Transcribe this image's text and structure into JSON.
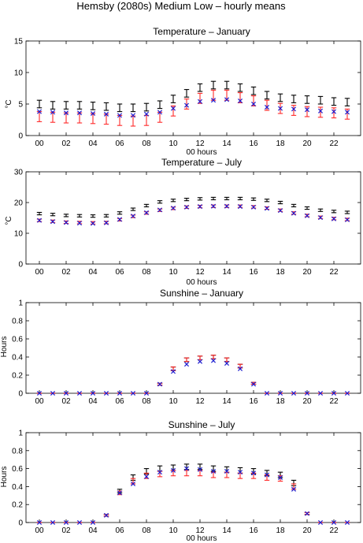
{
  "figure_title": "Hemsby (2080s) Medium Low – hourly means",
  "colors": {
    "black": "#000000",
    "red": "#ff2a2a",
    "blue": "#1f1fd0"
  },
  "chart_data": [
    {
      "type": "scatter",
      "title": "Temperature – January",
      "xlabel": "00 hours",
      "ylabel": "°C",
      "ylim": [
        0,
        15
      ],
      "yticks": [
        "0",
        "5",
        "10",
        "15"
      ],
      "xticks": [
        "00",
        "02",
        "04",
        "06",
        "08",
        "10",
        "12",
        "14",
        "16",
        "18",
        "20",
        "22"
      ],
      "x": [
        0,
        1,
        2,
        3,
        4,
        5,
        6,
        7,
        8,
        9,
        10,
        11,
        12,
        13,
        14,
        15,
        16,
        17,
        18,
        19,
        20,
        21,
        22,
        23
      ],
      "series": [
        {
          "marker": "errorbar",
          "color": "black",
          "values": [
            5.0,
            4.8,
            4.8,
            4.8,
            4.7,
            4.6,
            4.4,
            4.4,
            4.5,
            4.9,
            5.8,
            6.7,
            7.6,
            8.0,
            8.0,
            7.6,
            7.1,
            6.4,
            6.0,
            5.8,
            5.7,
            5.6,
            5.4,
            5.3
          ],
          "err": [
            0.6,
            0.6,
            0.6,
            0.6,
            0.6,
            0.6,
            0.6,
            0.6,
            0.6,
            0.6,
            0.6,
            0.6,
            0.6,
            0.6,
            0.6,
            0.6,
            0.6,
            0.6,
            0.6,
            0.6,
            0.6,
            0.6,
            0.6,
            0.6
          ]
        },
        {
          "marker": "errorbar",
          "color": "red",
          "values": [
            3.0,
            2.9,
            2.8,
            2.8,
            2.7,
            2.6,
            2.4,
            2.3,
            2.4,
            2.9,
            3.9,
            5.0,
            5.9,
            6.4,
            6.4,
            6.0,
            5.5,
            4.8,
            4.3,
            4.0,
            3.8,
            3.7,
            3.6,
            3.4
          ],
          "err": [
            0.8,
            0.8,
            0.8,
            0.8,
            0.8,
            0.8,
            0.8,
            0.8,
            0.8,
            0.8,
            0.8,
            0.8,
            0.8,
            0.8,
            0.8,
            0.8,
            0.8,
            0.8,
            0.8,
            0.8,
            0.8,
            0.8,
            0.8,
            0.8
          ]
        },
        {
          "marker": "x",
          "color": "blue",
          "values": [
            3.8,
            3.7,
            3.6,
            3.6,
            3.5,
            3.4,
            3.2,
            3.2,
            3.4,
            3.7,
            4.3,
            4.8,
            5.4,
            5.6,
            5.7,
            5.5,
            5.0,
            4.5,
            4.3,
            4.2,
            4.1,
            3.9,
            3.8,
            3.7
          ]
        }
      ]
    },
    {
      "type": "scatter",
      "title": "Temperature – July",
      "xlabel": "00 hours",
      "ylabel": "°C",
      "ylim": [
        0,
        30
      ],
      "yticks": [
        "0",
        "10",
        "20",
        "30"
      ],
      "xticks": [
        "00",
        "02",
        "04",
        "06",
        "08",
        "10",
        "12",
        "14",
        "16",
        "18",
        "20",
        "22"
      ],
      "x": [
        0,
        1,
        2,
        3,
        4,
        5,
        6,
        7,
        8,
        9,
        10,
        11,
        12,
        13,
        14,
        15,
        16,
        17,
        18,
        19,
        20,
        21,
        22,
        23
      ],
      "series": [
        {
          "marker": "errorbar",
          "color": "black",
          "values": [
            16.4,
            16.1,
            15.8,
            15.7,
            15.6,
            15.7,
            16.6,
            17.8,
            19.0,
            20.2,
            20.7,
            21.0,
            21.2,
            21.3,
            21.3,
            21.3,
            21.1,
            20.7,
            20.0,
            19.0,
            18.2,
            17.5,
            17.1,
            16.8
          ],
          "err": [
            0.4,
            0.4,
            0.4,
            0.4,
            0.4,
            0.4,
            0.4,
            0.4,
            0.4,
            0.4,
            0.4,
            0.4,
            0.4,
            0.4,
            0.4,
            0.4,
            0.4,
            0.4,
            0.4,
            0.4,
            0.4,
            0.4,
            0.4,
            0.4
          ]
        },
        {
          "marker": "errorbar",
          "color": "red",
          "values": [
            14.2,
            13.9,
            13.6,
            13.5,
            13.4,
            13.5,
            14.4,
            15.5,
            16.6,
            17.5,
            18.1,
            18.5,
            18.7,
            18.8,
            18.8,
            18.8,
            18.6,
            18.2,
            17.5,
            16.6,
            15.8,
            15.2,
            14.8,
            14.5
          ],
          "err": [
            0.4,
            0.4,
            0.4,
            0.4,
            0.4,
            0.4,
            0.4,
            0.4,
            0.4,
            0.4,
            0.4,
            0.4,
            0.4,
            0.4,
            0.4,
            0.4,
            0.4,
            0.4,
            0.4,
            0.4,
            0.4,
            0.4,
            0.4,
            0.4
          ]
        },
        {
          "marker": "x",
          "color": "blue",
          "values": [
            14.2,
            13.8,
            13.5,
            13.3,
            13.2,
            13.4,
            14.5,
            15.6,
            16.7,
            17.6,
            18.2,
            18.5,
            18.7,
            18.8,
            18.8,
            18.7,
            18.5,
            18.1,
            17.4,
            16.5,
            15.7,
            15.1,
            14.7,
            14.4
          ]
        }
      ]
    },
    {
      "type": "scatter",
      "title": "Sunshine – January",
      "xlabel": "00 hours",
      "ylabel": "Hours",
      "ylim": [
        0,
        1
      ],
      "yticks": [
        "0",
        "0.2",
        "0.4",
        "0.6",
        "0.8",
        "1"
      ],
      "xticks": [
        "00",
        "02",
        "04",
        "06",
        "08",
        "10",
        "12",
        "14",
        "16",
        "18",
        "20",
        "22"
      ],
      "x": [
        0,
        1,
        2,
        3,
        4,
        5,
        6,
        7,
        8,
        9,
        10,
        11,
        12,
        13,
        14,
        15,
        16,
        17,
        18,
        19,
        20,
        21,
        22,
        23
      ],
      "series": [
        {
          "marker": "errorbar",
          "color": "black",
          "values": [
            0,
            0,
            0,
            0,
            0,
            0,
            0,
            0,
            0,
            0.1,
            0.27,
            0.37,
            0.39,
            0.4,
            0.37,
            0.3,
            0.11,
            0,
            0,
            0,
            0,
            0,
            0,
            0
          ],
          "err": [
            0,
            0,
            0,
            0,
            0,
            0,
            0,
            0,
            0,
            0.01,
            0.02,
            0.02,
            0.02,
            0.02,
            0.02,
            0.02,
            0.01,
            0,
            0,
            0,
            0,
            0,
            0,
            0
          ]
        },
        {
          "marker": "errorbar",
          "color": "red",
          "values": [
            0,
            0,
            0,
            0,
            0,
            0,
            0,
            0,
            0,
            0.1,
            0.27,
            0.37,
            0.39,
            0.4,
            0.37,
            0.3,
            0.11,
            0,
            0,
            0,
            0,
            0,
            0,
            0
          ],
          "err": [
            0,
            0,
            0,
            0,
            0,
            0,
            0,
            0,
            0,
            0.01,
            0.02,
            0.02,
            0.02,
            0.02,
            0.02,
            0.02,
            0.01,
            0,
            0,
            0,
            0,
            0,
            0,
            0
          ]
        },
        {
          "marker": "x",
          "color": "blue",
          "values": [
            0,
            0,
            0,
            0,
            0,
            0,
            0,
            0,
            0,
            0.1,
            0.24,
            0.32,
            0.35,
            0.36,
            0.33,
            0.27,
            0.1,
            0,
            0,
            0,
            0,
            0,
            0,
            0
          ]
        }
      ]
    },
    {
      "type": "scatter",
      "title": "Sunshine – July",
      "xlabel": "00 hours",
      "ylabel": "Hours",
      "ylim": [
        0,
        1
      ],
      "yticks": [
        "0",
        "0.2",
        "0.4",
        "0.6",
        "0.8",
        "1"
      ],
      "xticks": [
        "00",
        "02",
        "04",
        "06",
        "08",
        "10",
        "12",
        "14",
        "16",
        "18",
        "20",
        "22"
      ],
      "x": [
        0,
        1,
        2,
        3,
        4,
        5,
        6,
        7,
        8,
        9,
        10,
        11,
        12,
        13,
        14,
        15,
        16,
        17,
        18,
        19,
        20,
        21,
        22,
        23
      ],
      "series": [
        {
          "marker": "errorbar",
          "color": "black",
          "values": [
            0,
            0,
            0,
            0,
            0,
            0.08,
            0.35,
            0.5,
            0.57,
            0.6,
            0.61,
            0.62,
            0.62,
            0.6,
            0.59,
            0.58,
            0.57,
            0.55,
            0.53,
            0.44,
            0.1,
            0,
            0,
            0
          ],
          "err": [
            0,
            0,
            0,
            0,
            0,
            0.01,
            0.02,
            0.03,
            0.03,
            0.03,
            0.03,
            0.03,
            0.03,
            0.03,
            0.03,
            0.03,
            0.03,
            0.03,
            0.03,
            0.03,
            0.01,
            0,
            0,
            0
          ]
        },
        {
          "marker": "errorbar",
          "color": "red",
          "values": [
            0,
            0,
            0,
            0,
            0,
            0.08,
            0.33,
            0.46,
            0.52,
            0.54,
            0.55,
            0.55,
            0.55,
            0.53,
            0.53,
            0.52,
            0.52,
            0.5,
            0.49,
            0.4,
            0.1,
            0,
            0,
            0
          ],
          "err": [
            0,
            0,
            0,
            0,
            0,
            0.01,
            0.02,
            0.03,
            0.03,
            0.03,
            0.03,
            0.03,
            0.03,
            0.03,
            0.03,
            0.03,
            0.03,
            0.03,
            0.03,
            0.03,
            0.01,
            0,
            0,
            0
          ]
        },
        {
          "marker": "x",
          "color": "blue",
          "values": [
            0,
            0,
            0,
            0,
            0,
            0.08,
            0.33,
            0.43,
            0.51,
            0.56,
            0.58,
            0.6,
            0.59,
            0.57,
            0.57,
            0.56,
            0.55,
            0.53,
            0.5,
            0.37,
            0.1,
            0,
            0,
            0
          ]
        }
      ]
    }
  ]
}
